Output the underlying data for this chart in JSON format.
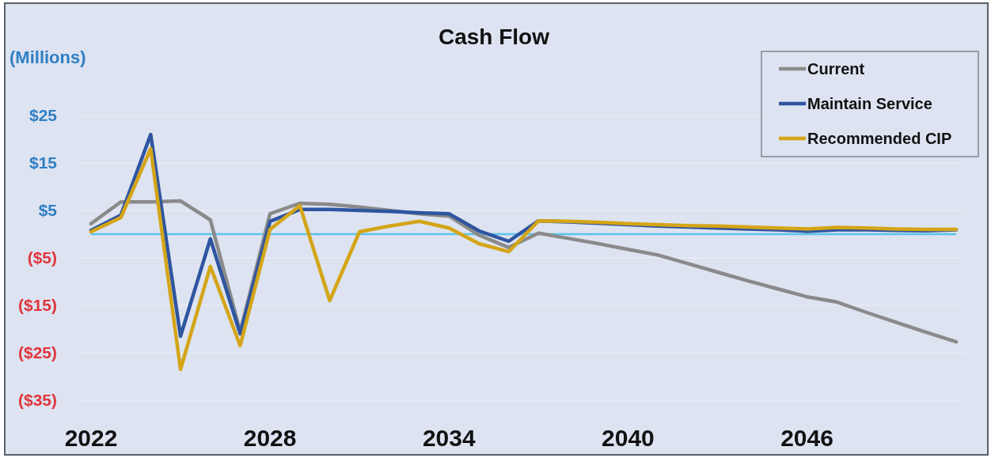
{
  "chart_data": {
    "type": "line",
    "title": "Cash Flow",
    "ylabel": "(Millions)",
    "x": [
      2022,
      2023,
      2024,
      2025,
      2026,
      2027,
      2028,
      2029,
      2030,
      2031,
      2032,
      2033,
      2034,
      2035,
      2036,
      2037,
      2038,
      2039,
      2040,
      2041,
      2042,
      2043,
      2044,
      2045,
      2046,
      2047,
      2048,
      2049,
      2050,
      2051
    ],
    "xlim": [
      2022,
      2051
    ],
    "xticks": [
      2022,
      2028,
      2034,
      2040,
      2046
    ],
    "ylim": [
      -35,
      25
    ],
    "yticks": [
      {
        "value": -35,
        "label": "($35)"
      },
      {
        "value": -25,
        "label": "($25)"
      },
      {
        "value": -15,
        "label": "($15)"
      },
      {
        "value": -5,
        "label": "($5)"
      },
      {
        "value": 5,
        "label": "$5"
      },
      {
        "value": 15,
        "label": "$15"
      },
      {
        "value": 25,
        "label": "$25"
      }
    ],
    "grid": "y",
    "legend": "top right",
    "ref_lines": [
      {
        "axis": "y",
        "value": 0,
        "color": "#5cc3ea"
      }
    ],
    "series": [
      {
        "name": "Current",
        "color": "#8a8a8a",
        "values": [
          2.2,
          6.8,
          6.8,
          7,
          3,
          -20.5,
          4.3,
          6.5,
          6.3,
          5.7,
          5,
          4.3,
          3.8,
          -0.2,
          -2.8,
          0.2,
          -0.9,
          -2,
          -3.2,
          -4.4,
          -6.2,
          -8,
          -9.8,
          -11.5,
          -13.2,
          -14.3,
          -16.5,
          -18.6,
          -20.7,
          -22.7
        ]
      },
      {
        "name": "Maintain Service",
        "color": "#2e55a0",
        "values": [
          0.8,
          4,
          21,
          -21.5,
          -1,
          -21,
          2.7,
          5.2,
          5.2,
          5,
          4.8,
          4.5,
          4.3,
          0.7,
          -1.5,
          2.8,
          2.6,
          2.3,
          2,
          1.7,
          1.5,
          1.3,
          1.1,
          0.9,
          0.6,
          0.9,
          0.9,
          0.8,
          0.7,
          0.9
        ]
      },
      {
        "name": "Recommended CIP",
        "color": "#d4a517",
        "values": [
          0.5,
          3.5,
          18,
          -28.5,
          -6.8,
          -23.5,
          1,
          6,
          -14,
          0.5,
          1.7,
          2.7,
          1.3,
          -2,
          -3.7,
          2.8,
          2.7,
          2.5,
          2.2,
          2,
          1.8,
          1.7,
          1.5,
          1.3,
          1.1,
          1.4,
          1.3,
          1.1,
          1,
          1
        ]
      }
    ]
  }
}
